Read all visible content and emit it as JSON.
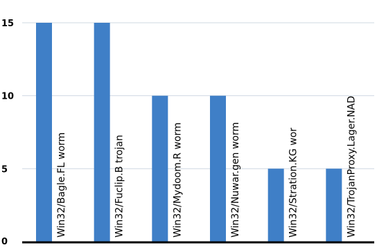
{
  "chart_data": {
    "type": "bar",
    "categories": [
      "Win32/Bagle.FL worm",
      "Win32/Fuclip.B trojan",
      "Win32/Mydoom.R worm",
      "Win32/Nuwar.gen worm",
      "Win32/Stration.KG wor",
      "Win32/TrojanProxy.Lager.NAD"
    ],
    "values": [
      15,
      15,
      10,
      10,
      5,
      5
    ],
    "ylim": [
      0,
      15
    ],
    "yticks": [
      "0",
      "5",
      "10",
      "15"
    ],
    "grid": true,
    "colors": {
      "bar": "#3f7fc7",
      "grid": "#cfd8e2",
      "axis": "#000000"
    }
  }
}
